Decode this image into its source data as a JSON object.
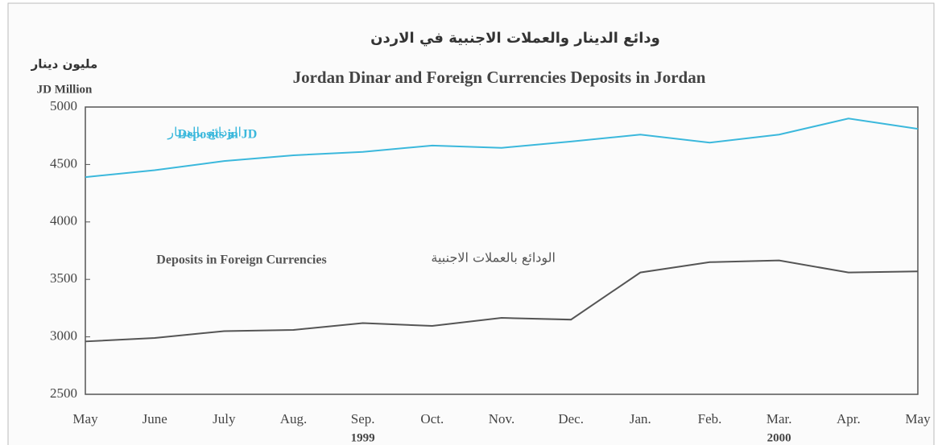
{
  "chart_data": {
    "type": "line",
    "title_ar": "ودائع الدينار  والعملات الاجنبية في الاردن",
    "title": "Jordan Dinar and Foreign Currencies Deposits in Jordan",
    "y_label_ar": "مليون دينار",
    "y_label": "JD Million",
    "categories": [
      "May",
      "June",
      "July",
      "Aug.",
      "Sep.",
      "Oct.",
      "Nov.",
      "Dec.",
      "Jan.",
      "Feb.",
      "Mar.",
      "Apr.",
      "May"
    ],
    "years": [
      "1999",
      "2000"
    ],
    "series": [
      {
        "name": "Deposits in JD",
        "name_ar": "الودائع بالدينار",
        "color": "#3bb8dc",
        "values": [
          4390,
          4450,
          4530,
          4580,
          4610,
          4665,
          4645,
          4700,
          4760,
          4690,
          4760,
          4900,
          4810
        ]
      },
      {
        "name": "Deposits in Foreign Currencies",
        "name_ar": "الودائع بالعملات الاجنبية",
        "color": "#555555",
        "values": [
          2960,
          2990,
          3050,
          3060,
          3120,
          3095,
          3165,
          3150,
          3560,
          3650,
          3665,
          3560,
          3570
        ]
      }
    ],
    "ylim": [
      2500,
      5000
    ],
    "yticks": [
      2500,
      3000,
      3500,
      4000,
      4500,
      5000
    ],
    "grid": false
  }
}
